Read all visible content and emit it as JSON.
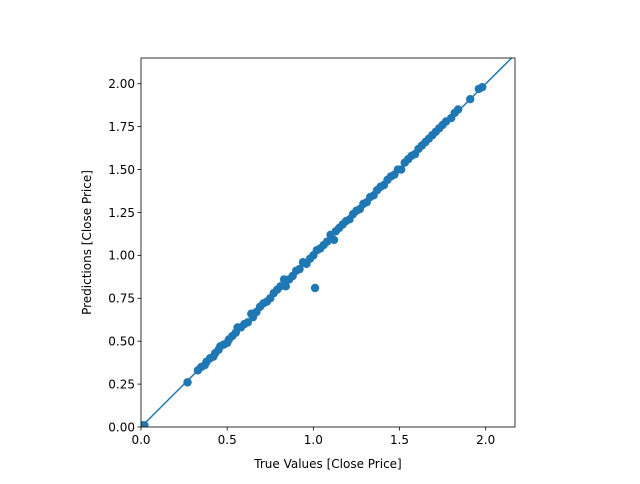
{
  "chart_data": {
    "type": "scatter",
    "title": "",
    "xlabel": "True Values [Close Price]",
    "ylabel": "Predictions [Close Price]",
    "xlim": [
      0.0,
      2.17
    ],
    "ylim": [
      0.0,
      2.15
    ],
    "x_ticks": [
      0.0,
      0.5,
      1.0,
      1.5,
      2.0
    ],
    "x_tick_labels": [
      "0.0",
      "0.5",
      "1.0",
      "1.5",
      "2.0"
    ],
    "y_ticks": [
      0.0,
      0.25,
      0.5,
      0.75,
      1.0,
      1.25,
      1.5,
      1.75,
      2.0
    ],
    "y_tick_labels": [
      "0.00",
      "0.25",
      "0.50",
      "0.75",
      "1.00",
      "1.25",
      "1.50",
      "1.75",
      "2.00"
    ],
    "grid": false,
    "legend": "none",
    "aspect": "equal",
    "color": "#1f77b4",
    "reference_line": {
      "x": [
        0.0,
        2.17
      ],
      "y": [
        0.0,
        2.17
      ]
    },
    "points": [
      [
        0.01,
        0.01
      ],
      [
        0.02,
        0.01
      ],
      [
        0.27,
        0.26
      ],
      [
        0.33,
        0.33
      ],
      [
        0.35,
        0.35
      ],
      [
        0.37,
        0.36
      ],
      [
        0.38,
        0.38
      ],
      [
        0.4,
        0.4
      ],
      [
        0.42,
        0.41
      ],
      [
        0.43,
        0.43
      ],
      [
        0.45,
        0.45
      ],
      [
        0.46,
        0.47
      ],
      [
        0.48,
        0.48
      ],
      [
        0.5,
        0.49
      ],
      [
        0.51,
        0.51
      ],
      [
        0.53,
        0.53
      ],
      [
        0.55,
        0.55
      ],
      [
        0.56,
        0.58
      ],
      [
        0.58,
        0.58
      ],
      [
        0.6,
        0.6
      ],
      [
        0.62,
        0.61
      ],
      [
        0.64,
        0.66
      ],
      [
        0.65,
        0.64
      ],
      [
        0.67,
        0.67
      ],
      [
        0.69,
        0.7
      ],
      [
        0.71,
        0.72
      ],
      [
        0.73,
        0.73
      ],
      [
        0.75,
        0.75
      ],
      [
        0.77,
        0.78
      ],
      [
        0.79,
        0.8
      ],
      [
        0.81,
        0.82
      ],
      [
        0.83,
        0.86
      ],
      [
        0.84,
        0.82
      ],
      [
        0.86,
        0.86
      ],
      [
        0.88,
        0.88
      ],
      [
        0.9,
        0.91
      ],
      [
        0.92,
        0.92
      ],
      [
        0.94,
        0.96
      ],
      [
        0.96,
        0.95
      ],
      [
        0.98,
        0.98
      ],
      [
        1.0,
        1.0
      ],
      [
        1.01,
        0.81
      ],
      [
        1.02,
        1.03
      ],
      [
        1.04,
        1.04
      ],
      [
        1.06,
        1.06
      ],
      [
        1.08,
        1.08
      ],
      [
        1.1,
        1.12
      ],
      [
        1.12,
        1.09
      ],
      [
        1.13,
        1.14
      ],
      [
        1.15,
        1.16
      ],
      [
        1.17,
        1.18
      ],
      [
        1.19,
        1.2
      ],
      [
        1.21,
        1.21
      ],
      [
        1.23,
        1.24
      ],
      [
        1.25,
        1.26
      ],
      [
        1.27,
        1.27
      ],
      [
        1.29,
        1.3
      ],
      [
        1.31,
        1.31
      ],
      [
        1.33,
        1.34
      ],
      [
        1.35,
        1.35
      ],
      [
        1.37,
        1.38
      ],
      [
        1.39,
        1.4
      ],
      [
        1.41,
        1.41
      ],
      [
        1.43,
        1.44
      ],
      [
        1.45,
        1.46
      ],
      [
        1.47,
        1.47
      ],
      [
        1.49,
        1.5
      ],
      [
        1.51,
        1.5
      ],
      [
        1.53,
        1.54
      ],
      [
        1.55,
        1.56
      ],
      [
        1.57,
        1.58
      ],
      [
        1.59,
        1.59
      ],
      [
        1.61,
        1.62
      ],
      [
        1.63,
        1.64
      ],
      [
        1.65,
        1.66
      ],
      [
        1.67,
        1.68
      ],
      [
        1.69,
        1.7
      ],
      [
        1.71,
        1.72
      ],
      [
        1.73,
        1.74
      ],
      [
        1.75,
        1.76
      ],
      [
        1.77,
        1.78
      ],
      [
        1.8,
        1.8
      ],
      [
        1.82,
        1.83
      ],
      [
        1.84,
        1.85
      ],
      [
        1.91,
        1.91
      ],
      [
        1.96,
        1.97
      ],
      [
        1.98,
        1.98
      ]
    ]
  }
}
